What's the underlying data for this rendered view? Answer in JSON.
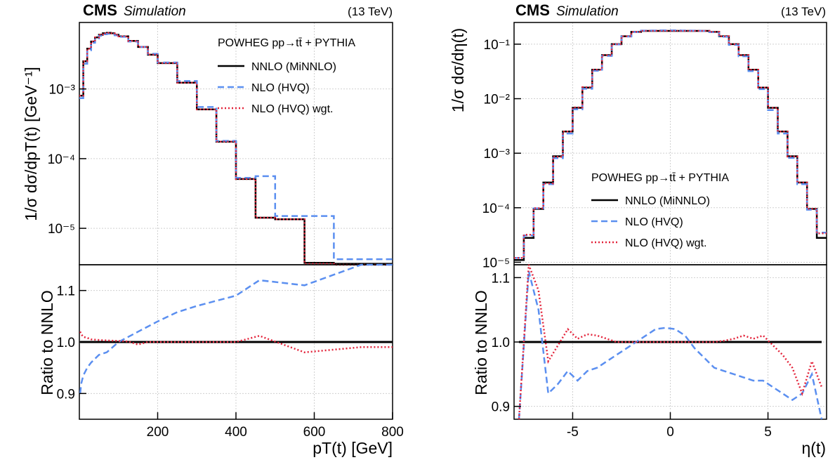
{
  "panels": [
    {
      "experiment": "CMS",
      "tag": "Simulation",
      "energy": "(13 TeV)",
      "top_ylabel": "1/σ dσ/dpT(t) [GeV⁻¹]",
      "bottom_ylabel": "Ratio to NNLO",
      "xlabel": "pT(t) [GeV]",
      "legend_title": "POWHEG pp→tt̄ + PYTHIA",
      "legend_entries": [
        "NNLO (MiNNLO)",
        "NLO (HVQ)",
        "NLO (HVQ) wgt."
      ],
      "top_yticks": [
        "10⁻⁵",
        "10⁻⁴",
        "10⁻³"
      ],
      "bottom_yticks": [
        "0.9",
        "1.0",
        "1.1"
      ],
      "xticks": [
        "200",
        "400",
        "600",
        "800"
      ]
    },
    {
      "experiment": "CMS",
      "tag": "Simulation",
      "energy": "(13 TeV)",
      "top_ylabel": "1/σ dσ/dη(t)",
      "bottom_ylabel": "Ratio to NNLO",
      "xlabel": "η(t)",
      "legend_title": "POWHEG pp→tt̄ + PYTHIA",
      "legend_entries": [
        "NNLO (MiNNLO)",
        "NLO (HVQ)",
        "NLO (HVQ) wgt."
      ],
      "top_yticks": [
        "10⁻⁵",
        "10⁻⁴",
        "10⁻³",
        "10⁻²",
        "10⁻¹"
      ],
      "bottom_yticks": [
        "0.9",
        "1.0",
        "1.1"
      ],
      "xticks": [
        "-5",
        "0",
        "5"
      ]
    }
  ],
  "colors": {
    "nnlo": "#000000",
    "nlo": "#5b8ff0",
    "wgt": "#e3243b"
  },
  "chart_data": [
    {
      "type": "line",
      "panel": "top",
      "x_edges": [
        0,
        10,
        20,
        30,
        40,
        50,
        60,
        70,
        80,
        90,
        100,
        125,
        150,
        175,
        200,
        250,
        300,
        350,
        400,
        450,
        500,
        575,
        650,
        800
      ],
      "ylim": [
        3e-06,
        0.009
      ],
      "yscale": "log",
      "xlim": [
        0,
        800
      ],
      "series": [
        {
          "name": "NNLO (MiNNLO)",
          "values": [
            0.0008,
            0.0025,
            0.0038,
            0.0048,
            0.0055,
            0.006,
            0.0063,
            0.0064,
            0.0063,
            0.006,
            0.0057,
            0.0049,
            0.004,
            0.0031,
            0.00235,
            0.00123,
            0.00051,
            0.000175,
            5.1e-05,
            1.42e-05,
            1.35e-05,
            3.2e-06,
            3.1e-06
          ]
        },
        {
          "name": "NLO (HVQ)",
          "values": [
            0.00074,
            0.0023,
            0.0036,
            0.0046,
            0.0053,
            0.0058,
            0.0061,
            0.0062,
            0.0062,
            0.0059,
            0.0056,
            0.0048,
            0.004,
            0.0032,
            0.0024,
            0.0013,
            0.00055,
            0.00018,
            5.3e-05,
            5.6e-05,
            1.5e-05,
            1.5e-05,
            3.6e-06
          ]
        },
        {
          "name": "NLO (HVQ) wgt.",
          "values": [
            0.0008,
            0.0025,
            0.0038,
            0.0048,
            0.0055,
            0.006,
            0.0063,
            0.0064,
            0.0063,
            0.006,
            0.0057,
            0.0049,
            0.004,
            0.0031,
            0.00235,
            0.00123,
            0.00051,
            0.000175,
            5.1e-05,
            1.42e-05,
            1.35e-05,
            3.1e-06,
            3e-06
          ]
        }
      ]
    },
    {
      "type": "line",
      "panel": "ratio",
      "x": [
        2,
        5,
        10,
        20,
        30,
        50,
        70,
        100,
        125,
        150,
        175,
        200,
        250,
        300,
        350,
        400,
        460,
        575,
        720,
        800
      ],
      "ylim": [
        0.85,
        1.15
      ],
      "xlim": [
        0,
        800
      ],
      "series": [
        {
          "name": "NNLO (MiNNLO)",
          "values": [
            1,
            1,
            1,
            1,
            1,
            1,
            1,
            1,
            1,
            1,
            1,
            1,
            1,
            1,
            1,
            1,
            1,
            1,
            1,
            1
          ]
        },
        {
          "name": "NLO (HVQ)",
          "values": [
            0.9,
            0.92,
            0.935,
            0.95,
            0.96,
            0.975,
            0.98,
            1.0,
            1.01,
            1.02,
            1.03,
            1.04,
            1.058,
            1.07,
            1.08,
            1.09,
            1.12,
            1.11,
            1.16,
            1.16
          ]
        },
        {
          "name": "NLO (HVQ) wgt.",
          "values": [
            1.02,
            1.015,
            1.01,
            1.008,
            1.005,
            1.004,
            1.003,
            1.002,
            1.001,
            0.995,
            1.0,
            1.0,
            1.0,
            1.0,
            1.0,
            1.0,
            1.012,
            0.98,
            0.99,
            0.99
          ]
        }
      ]
    },
    {
      "type": "line",
      "panel": "top",
      "x_edges": [
        -8,
        -7.5,
        -7,
        -6.5,
        -6,
        -5.5,
        -5,
        -4.5,
        -4,
        -3.5,
        -3,
        -2.5,
        -2,
        -1.5,
        -1,
        -0.5,
        0,
        0.5,
        1,
        1.5,
        2,
        2.5,
        3,
        3.5,
        4,
        4.5,
        5,
        5.5,
        6,
        6.5,
        7,
        7.5,
        8
      ],
      "ylim": [
        9e-06,
        0.25
      ],
      "yscale": "log",
      "xlim": [
        -8,
        8
      ],
      "series": [
        {
          "name": "NNLO (MiNNLO)",
          "values": [
            1.1e-05,
            2.8e-05,
            9.5e-05,
            0.00029,
            0.00088,
            0.0025,
            0.0068,
            0.016,
            0.034,
            0.063,
            0.1,
            0.14,
            0.168,
            0.175,
            0.175,
            0.175,
            0.175,
            0.175,
            0.175,
            0.175,
            0.168,
            0.14,
            0.1,
            0.063,
            0.034,
            0.016,
            0.0068,
            0.0025,
            0.00088,
            0.00029,
            9.5e-05,
            2.8e-05
          ]
        },
        {
          "name": "NLO (HVQ)",
          "values": [
            1.2e-05,
            3.1e-05,
            9.7e-05,
            0.00027,
            0.00081,
            0.0023,
            0.0064,
            0.0152,
            0.0325,
            0.061,
            0.099,
            0.138,
            0.167,
            0.177,
            0.178,
            0.179,
            0.179,
            0.178,
            0.177,
            0.175,
            0.166,
            0.137,
            0.097,
            0.06,
            0.032,
            0.015,
            0.0062,
            0.0023,
            0.00082,
            0.00027,
            9.2e-05,
            3.5e-05
          ]
        },
        {
          "name": "NLO (HVQ) wgt.",
          "values": [
            1.2e-05,
            3.2e-05,
            9.8e-05,
            0.00028,
            0.00086,
            0.0025,
            0.0069,
            0.0162,
            0.0341,
            0.063,
            0.1,
            0.14,
            0.168,
            0.175,
            0.175,
            0.175,
            0.175,
            0.175,
            0.175,
            0.175,
            0.168,
            0.14,
            0.1,
            0.063,
            0.034,
            0.016,
            0.0068,
            0.0025,
            0.00087,
            0.00029,
            9.6e-05,
            3.4e-05
          ]
        }
      ]
    },
    {
      "type": "line",
      "panel": "ratio",
      "x": [
        -7.75,
        -7.25,
        -6.75,
        -6.25,
        -5.75,
        -5.25,
        -4.75,
        -4.25,
        -3.75,
        -3.25,
        -2.75,
        -2.25,
        -1.75,
        -1.25,
        -0.75,
        -0.25,
        0.25,
        0.75,
        1.25,
        1.75,
        2.25,
        2.75,
        3.25,
        3.75,
        4.25,
        4.75,
        5.25,
        5.75,
        6.25,
        6.75,
        7.25,
        7.75
      ],
      "ylim": [
        0.88,
        1.12
      ],
      "xlim": [
        -8,
        8
      ],
      "series": [
        {
          "name": "NNLO (MiNNLO)",
          "values": [
            1,
            1,
            1,
            1,
            1,
            1,
            1,
            1,
            1,
            1,
            1,
            1,
            1,
            1,
            1,
            1,
            1,
            1,
            1,
            1,
            1,
            1,
            1,
            1,
            1,
            1,
            1,
            1,
            1,
            1,
            1,
            1
          ]
        },
        {
          "name": "NLO (HVQ)",
          "values": [
            0.85,
            1.11,
            1.05,
            0.92,
            0.935,
            0.955,
            0.94,
            0.955,
            0.96,
            0.97,
            0.98,
            0.99,
            1.0,
            1.01,
            1.02,
            1.022,
            1.02,
            1.01,
            0.99,
            0.975,
            0.96,
            0.955,
            0.95,
            0.945,
            0.94,
            0.94,
            0.93,
            0.92,
            0.91,
            0.92,
            0.95,
            0.88
          ]
        },
        {
          "name": "NLO (HVQ) wgt.",
          "values": [
            0.88,
            1.12,
            1.08,
            0.97,
            0.995,
            1.02,
            1.005,
            1.012,
            1.01,
            1.005,
            1.0,
            1.0,
            1.0,
            1.0,
            1.0,
            1.0,
            1.0,
            1.0,
            1.0,
            1.0,
            1.0,
            1.002,
            1.005,
            1.01,
            1.005,
            1.01,
            0.995,
            0.98,
            0.96,
            0.92,
            0.97,
            0.93
          ]
        }
      ]
    }
  ]
}
